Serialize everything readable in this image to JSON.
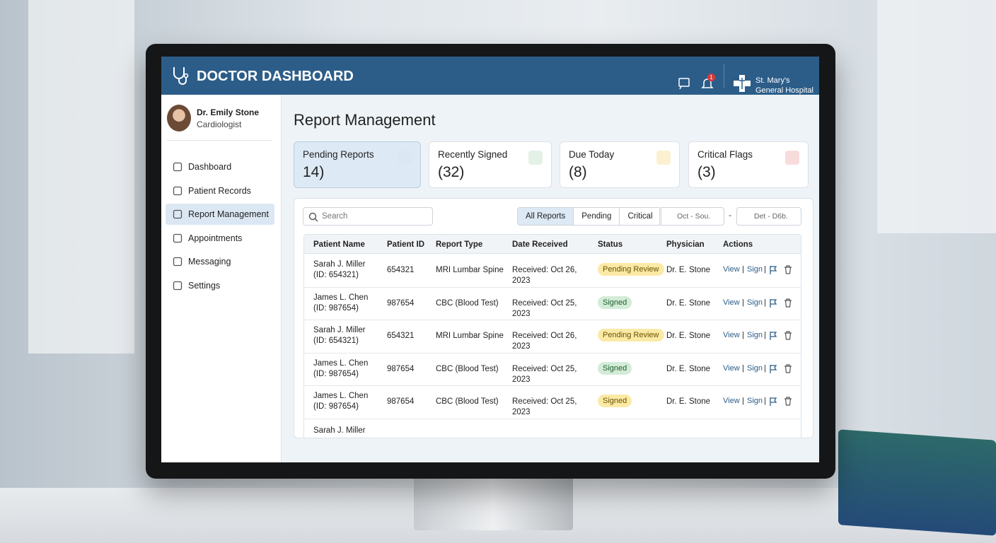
{
  "header": {
    "title": "DOCTOR DASHBOARD",
    "notification_count": "1",
    "hospital_line1": "St. Mary's",
    "hospital_line2": "General Hospital"
  },
  "user": {
    "name": "Dr. Emily Stone",
    "role": "Cardiologist"
  },
  "nav": [
    "Dashboard",
    "Patient Records",
    "Report Management",
    "Appointments",
    "Messaging",
    "Settings"
  ],
  "page_title": "Report Management",
  "cards": [
    {
      "label": "Pending Reports",
      "value": "14)"
    },
    {
      "label": "Recently Signed",
      "value": "(32)"
    },
    {
      "label": "Due Today",
      "value": "(8)"
    },
    {
      "label": "Critical Flags",
      "value": "(3)"
    }
  ],
  "toolbar": {
    "search": "Search",
    "tabs": [
      "All Reports",
      "Pending",
      "Critical"
    ],
    "date_from": "Oct - Sou.",
    "date_to": "Det - D6b.",
    "separator": "-"
  },
  "table": {
    "columns": [
      "Patient Name",
      "Patient ID",
      "Report Type",
      "Date Received",
      "Status",
      "Physician",
      "Actions"
    ],
    "rows": [
      [
        "Sarah J. Miller (ID: 654321)",
        "654321",
        "MRI Lumbar Spine",
        "Received: Oct 26, 2023",
        "Pending Review",
        "Dr. E. Stone"
      ],
      [
        "James L. Chen (ID: 987654)",
        "987654",
        "CBC (Blood Test)",
        "Received: Oct 25, 2023",
        "Signed",
        "Dr. E. Stone"
      ],
      [
        "Sarah J. Miller (ID: 654321)",
        "654321",
        "MRI Lumbar Spine",
        "Received: Oct 26, 2023",
        "Pending Review",
        "Dr. E. Stone"
      ],
      [
        "James L. Chen (ID: 987654)",
        "987654",
        "CBC (Blood Test)",
        "Received: Oct 25, 2023",
        "Signed",
        "Dr. E. Stone"
      ],
      [
        "James L. Chen (ID: 987654)",
        "987654",
        "CBC (Blood Test)",
        "Received: Oct 25, 2023",
        "Signed",
        "Dr. E. Stone"
      ]
    ],
    "partial_row": "Sarah J. Miller",
    "actions": [
      "View",
      "Sign"
    ],
    "action_separator": "|"
  }
}
